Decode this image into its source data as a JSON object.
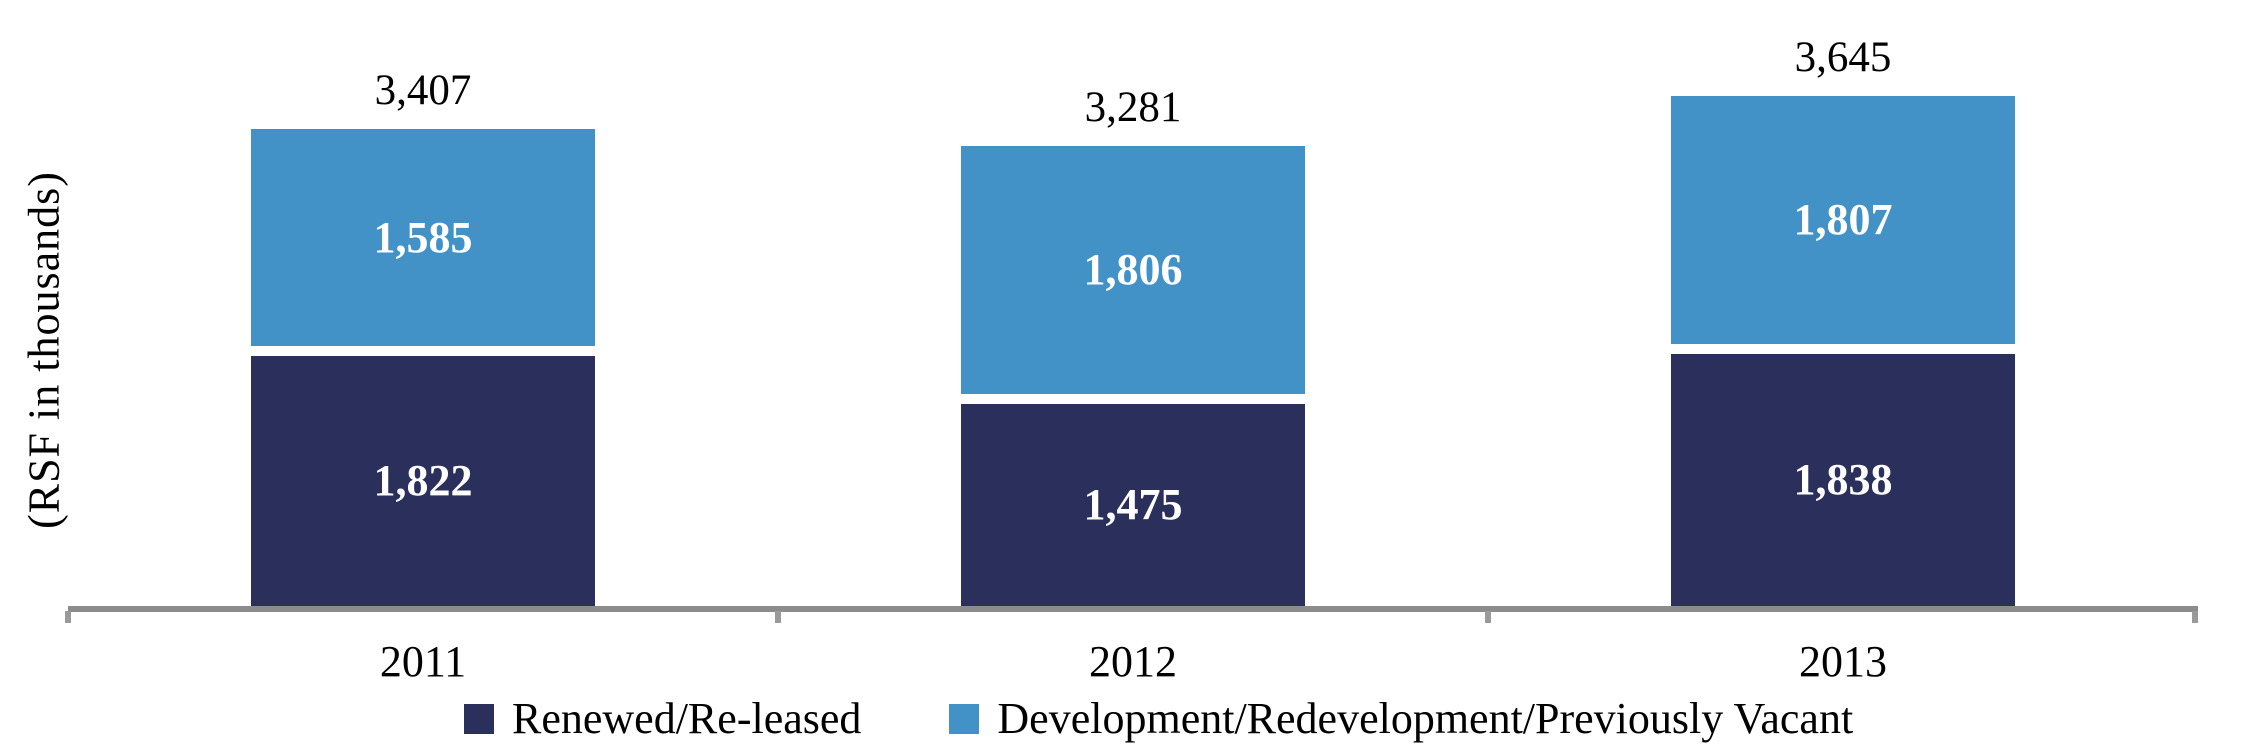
{
  "chart_data": {
    "type": "bar",
    "stacked": true,
    "title": "",
    "ylabel": "(RSF in thousands)",
    "xlabel": "",
    "categories": [
      "2011",
      "2012",
      "2013"
    ],
    "series": [
      {
        "name": "Renewed/Re-leased",
        "color": "#2A2F5B",
        "values": [
          1822,
          1475,
          1838
        ],
        "labels": [
          "1,822",
          "1,475",
          "1,838"
        ]
      },
      {
        "name": "Development/Redevelopment/Previously Vacant",
        "color": "#4292C8",
        "values": [
          1585,
          1806,
          1807
        ],
        "labels": [
          "1,585",
          "1,806",
          "1,807"
        ]
      }
    ],
    "totals": [
      3407,
      3281,
      3645
    ],
    "total_labels": [
      "3,407",
      "3,281",
      "3,645"
    ],
    "ylim": [
      0,
      3800
    ],
    "grid": false,
    "legend_position": "bottom",
    "axis_color": "#8C8C8C",
    "value_label_color": "#FFFFFF",
    "total_label_color": "#000000"
  }
}
